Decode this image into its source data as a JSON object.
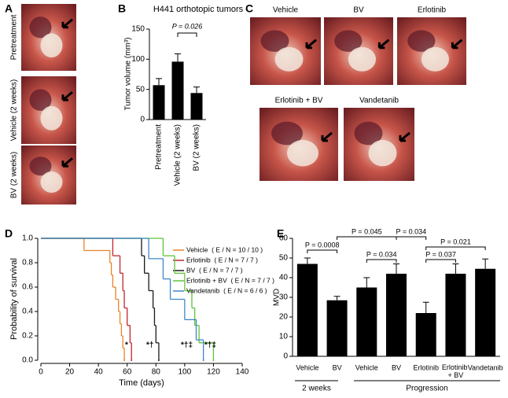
{
  "panel_labels": [
    "A",
    "B",
    "C",
    "D",
    "E"
  ],
  "photo_labels_a": [
    "Pretreatment",
    "Vehicle (2 weeks)",
    "BV (2 weeks)"
  ],
  "photo_labels_c": [
    "Vehicle",
    "BV",
    "Erlotinib",
    "Erlotinib + BV",
    "Vandetanib"
  ],
  "chart_data": [
    {
      "type": "bar",
      "title": "H441 orthotopic tumors",
      "y_label": "Tumor volume (mm³)",
      "categories": [
        "Pretreatment",
        "Vehicle (2 weeks)",
        "BV (2 weeks)"
      ],
      "values": [
        57,
        96,
        44
      ],
      "errors": [
        11,
        13,
        10
      ],
      "color": "#000000",
      "ylim": [
        0,
        150
      ],
      "yticks": [
        0,
        50,
        100,
        150
      ],
      "annotations": [
        "P = 0.026"
      ]
    },
    {
      "type": "survival",
      "x_label": "Time (days)",
      "y_label": "Probability of survival",
      "xlim": [
        0,
        140
      ],
      "xticks": [
        0,
        20,
        40,
        60,
        80,
        100,
        120,
        140
      ],
      "ylim": [
        0,
        1
      ],
      "yticks": [
        {
          "value": 0,
          "label": "0.0"
        },
        0.2,
        0.4,
        0.6,
        0.8,
        {
          "value": 1,
          "label": "1.0"
        }
      ],
      "series": [
        {
          "name": "Vehicle  ( E / N = 10 / 10 )",
          "color": "#e8822a",
          "x": [
            0,
            30,
            48,
            49,
            50,
            52,
            54,
            55,
            56,
            57,
            58
          ],
          "values": [
            1,
            0.9,
            0.8,
            0.7,
            0.6,
            0.5,
            0.4,
            0.3,
            0.2,
            0.1,
            0
          ]
        },
        {
          "name": "Erlotinib  ( E / N = 7 / 7 )",
          "color": "#c0272d",
          "x": [
            0,
            50,
            55,
            57,
            58,
            60,
            62,
            63
          ],
          "values": [
            1,
            0.857,
            0.714,
            0.571,
            0.429,
            0.286,
            0.143,
            0
          ]
        },
        {
          "name": "BV  ( E / N = 7 / 7 )",
          "color": "#1a1a1a",
          "x": [
            0,
            70,
            72,
            75,
            78,
            79,
            80,
            82
          ],
          "values": [
            1,
            0.857,
            0.714,
            0.571,
            0.429,
            0.286,
            0.143,
            0
          ]
        },
        {
          "name": "Erlotinib + BV  ( E / N = 7 / 7 )",
          "color": "#5ec43a",
          "x": [
            0,
            85,
            93,
            100,
            105,
            107,
            110,
            120
          ],
          "values": [
            1,
            0.857,
            0.714,
            0.571,
            0.429,
            0.286,
            0.143,
            0
          ]
        },
        {
          "name": "Vandetanib  ( E / N = 6 / 6 )",
          "color": "#3f86c8",
          "x": [
            0,
            75,
            85,
            90,
            100,
            108,
            113
          ],
          "values": [
            1,
            0.833,
            0.667,
            0.5,
            0.333,
            0.167,
            0
          ]
        }
      ],
      "annotations": [
        "*",
        "*†",
        "*†‡",
        "*†‡"
      ]
    },
    {
      "type": "bar",
      "y_label": "MVD",
      "categories": [
        "Vehicle",
        "BV",
        "Vehicle",
        "BV",
        "Erlotinib",
        "Erlotinib + BV",
        "Vandetanib"
      ],
      "values": [
        47,
        28.5,
        35,
        42,
        22,
        42,
        44.5
      ],
      "errors": [
        3,
        2,
        5,
        5,
        5.5,
        5,
        5
      ],
      "color": "#000000",
      "ylim": [
        0,
        60
      ],
      "yticks": [
        0,
        10,
        20,
        30,
        40,
        50,
        60
      ],
      "groups": [
        "2 weeks",
        "Progression"
      ],
      "annotations": [
        "P = 0.0008",
        "P = 0.045",
        "P = 0.034",
        "P = 0.034",
        "P = 0.037",
        "P = 0.021"
      ]
    }
  ]
}
